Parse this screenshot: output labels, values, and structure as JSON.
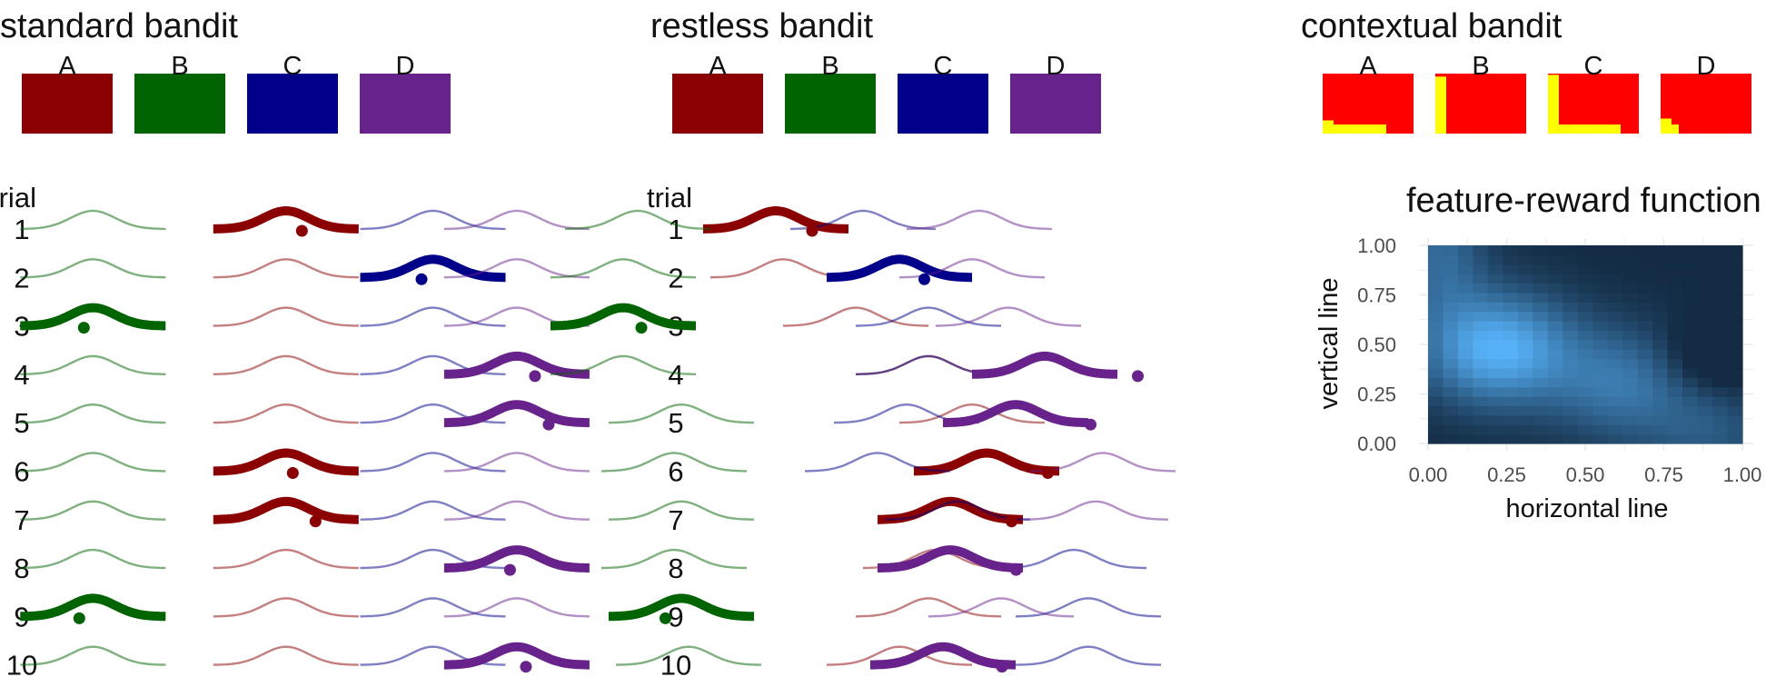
{
  "arm_colors": {
    "A": "#8B0000",
    "B": "#006400",
    "C": "#00008B",
    "D": "#68228B"
  },
  "context_colors": {
    "background": "#FF0000",
    "feature": "#FFFF00"
  },
  "panels": {
    "standard": {
      "title": "standard bandit",
      "arms": [
        "A",
        "B",
        "C",
        "D"
      ],
      "trial_header": "trial",
      "trials": [
        {
          "n": "1",
          "chosen": "A",
          "outcome": 0.35
        },
        {
          "n": "2",
          "chosen": "C",
          "outcome": -0.25
        },
        {
          "n": "3",
          "chosen": "B",
          "outcome": -0.2
        },
        {
          "n": "4",
          "chosen": "D",
          "outcome": 0.4
        },
        {
          "n": "5",
          "chosen": "D",
          "outcome": 0.7
        },
        {
          "n": "6",
          "chosen": "A",
          "outcome": 0.15
        },
        {
          "n": "7",
          "chosen": "A",
          "outcome": 0.65
        },
        {
          "n": "8",
          "chosen": "D",
          "outcome": -0.15
        },
        {
          "n": "9",
          "chosen": "B",
          "outcome": -0.3
        },
        {
          "n": "10",
          "chosen": "D",
          "outcome": 0.2
        }
      ]
    },
    "restless": {
      "title": "restless bandit",
      "arms": [
        "A",
        "B",
        "C",
        "D"
      ],
      "trial_header": "trial",
      "trials": [
        {
          "n": "1",
          "chosen": "A",
          "means": {
            "A": 0.15,
            "B": -0.8,
            "C": 0.75,
            "D": 1.55
          },
          "outcome": 0.8
        },
        {
          "n": "2",
          "chosen": "C",
          "means": {
            "A": 0.2,
            "B": -0.9,
            "C": 1.0,
            "D": 1.5
          },
          "outcome": 0.55
        },
        {
          "n": "3",
          "chosen": "B",
          "means": {
            "A": 0.7,
            "B": -0.9,
            "C": 1.2,
            "D": 1.75
          },
          "outcome": 0.4
        },
        {
          "n": "4",
          "chosen": "D",
          "means": {
            "A": 1.2,
            "B": -0.9,
            "C": 1.2,
            "D": 2.0
          },
          "outcome": 2.05
        },
        {
          "n": "5",
          "chosen": "D",
          "means": {
            "A": 1.5,
            "B": -0.5,
            "C": 1.05,
            "D": 1.8
          },
          "outcome": 1.65
        },
        {
          "n": "6",
          "chosen": "A",
          "means": {
            "A": 1.6,
            "B": -0.55,
            "C": 0.85,
            "D": 2.4
          },
          "outcome": 1.35
        },
        {
          "n": "7",
          "chosen": "A",
          "means": {
            "A": 1.35,
            "B": -0.5,
            "C": 1.4,
            "D": 2.35
          },
          "outcome": 1.35
        },
        {
          "n": "8",
          "chosen": "D",
          "means": {
            "A": 1.25,
            "B": -0.55,
            "C": 2.2,
            "D": 1.35
          },
          "outcome": 1.45
        },
        {
          "n": "9",
          "chosen": "B",
          "means": {
            "A": 1.2,
            "B": -0.5,
            "C": 2.3,
            "D": 1.7
          },
          "outcome": -0.35
        },
        {
          "n": "10",
          "chosen": "D",
          "means": {
            "A": 1.0,
            "B": -0.45,
            "C": 2.3,
            "D": 1.3
          },
          "outcome": 1.3
        }
      ]
    },
    "contextual": {
      "title": "contextual bandit",
      "arms": [
        {
          "label": "A",
          "horizontal": 0.7,
          "vertical": 0.22
        },
        {
          "label": "B",
          "horizontal": 0.12,
          "vertical": 0.95
        },
        {
          "label": "C",
          "horizontal": 0.8,
          "vertical": 0.98
        },
        {
          "label": "D",
          "horizontal": 0.2,
          "vertical": 0.25
        }
      ]
    }
  },
  "chart_data": {
    "type": "heatmap",
    "title": "feature-reward function",
    "xlabel": "horizontal line",
    "ylabel": "vertical line",
    "xlim": [
      0,
      1
    ],
    "ylim": [
      0,
      1
    ],
    "xticks": [
      "0.00",
      "0.25",
      "0.50",
      "0.75",
      "1.00"
    ],
    "yticks": [
      "0.00",
      "0.25",
      "0.50",
      "0.75",
      "1.00"
    ],
    "grid": true,
    "color_low": "#132B43",
    "color_high": "#56B1F7",
    "peak": {
      "x": 0.22,
      "y": 0.48
    }
  }
}
